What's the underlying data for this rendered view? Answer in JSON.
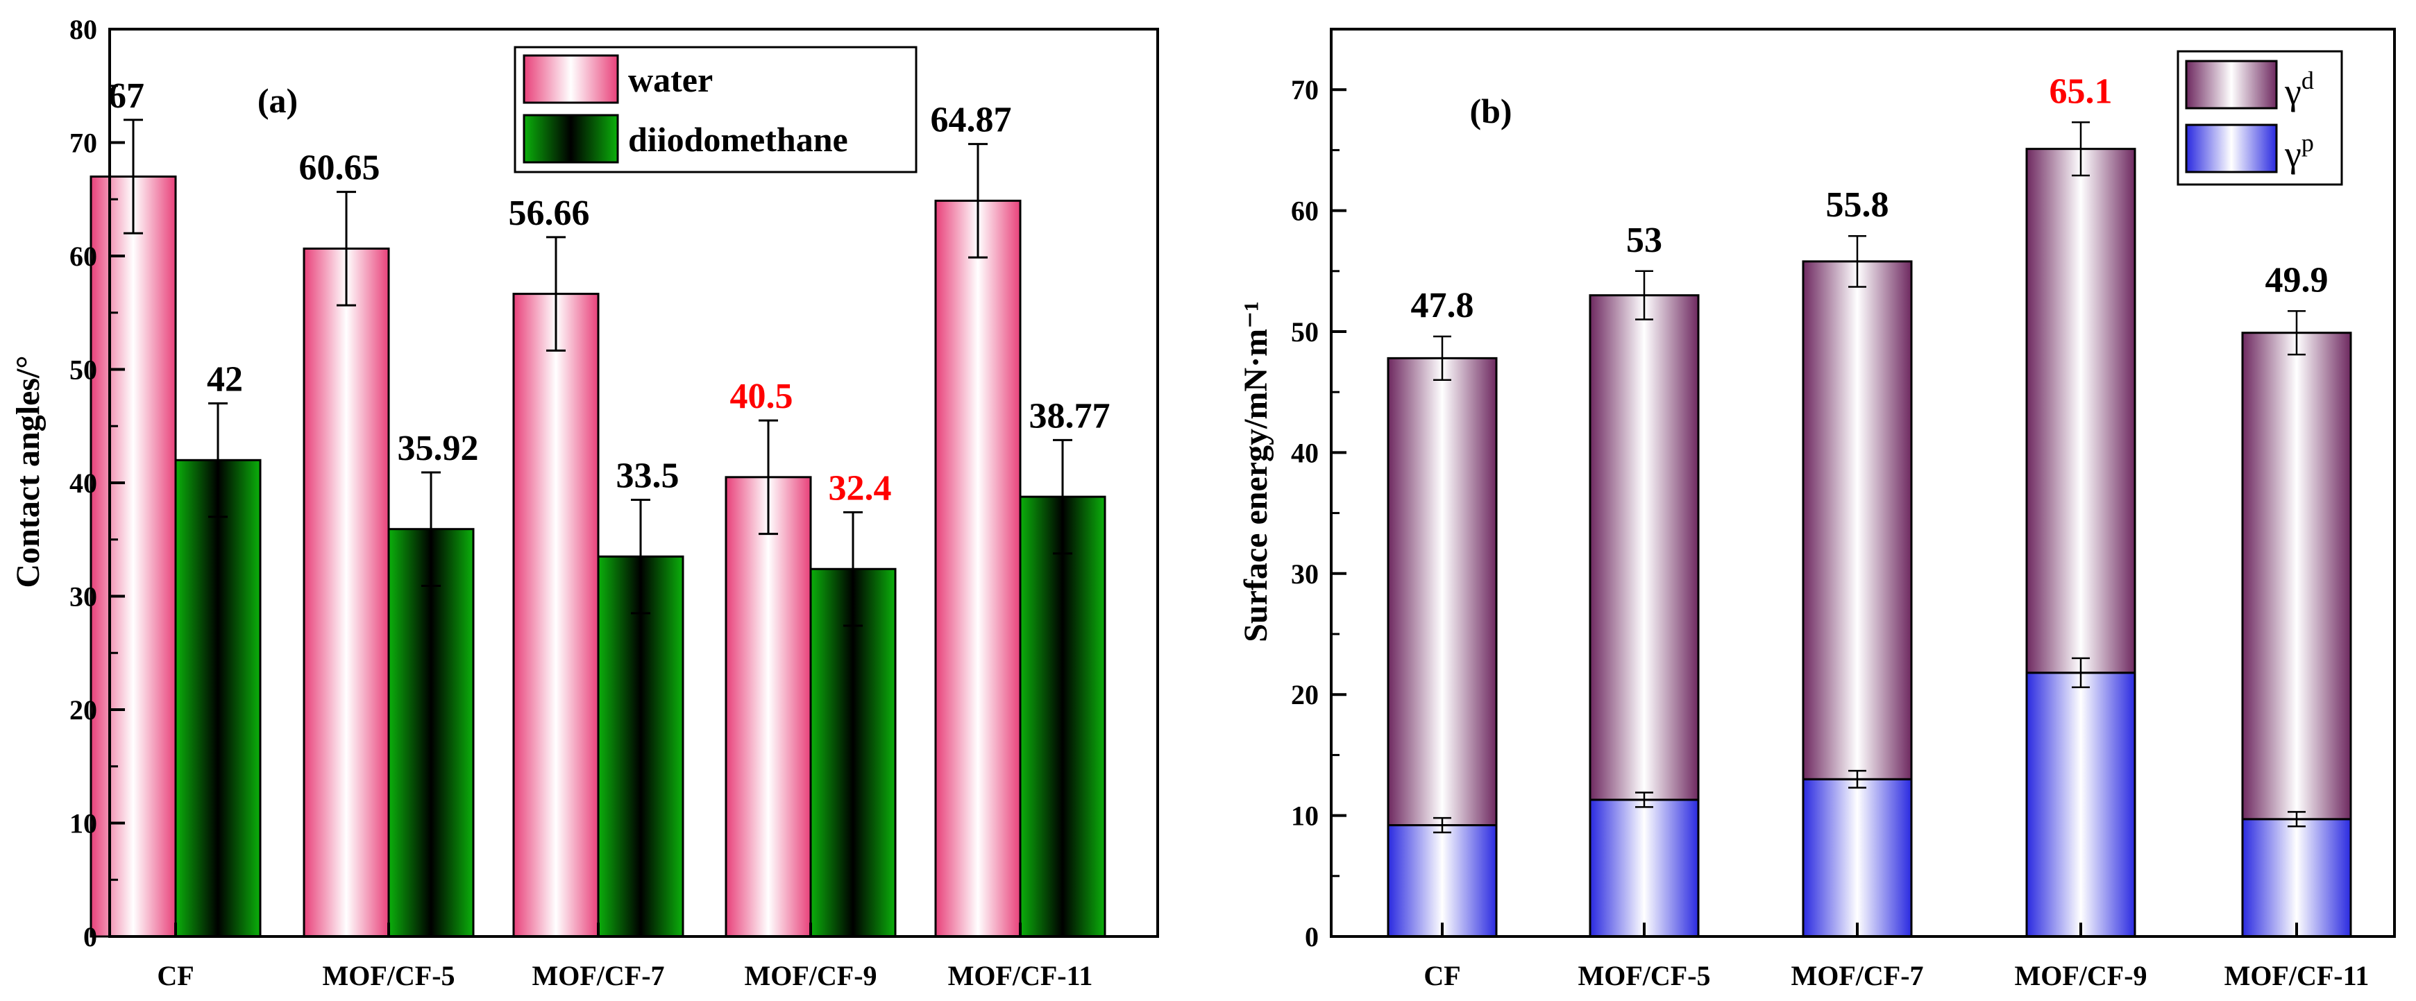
{
  "colors": {
    "water": "#e8417a",
    "diiodomethane": "#0a9a0a",
    "gamma_d": "#6e2960",
    "gamma_p": "#2a2ae0",
    "highlight": "#ff0000",
    "text": "#000000"
  },
  "chart_data": [
    {
      "type": "bar",
      "panel_label": "(a)",
      "categories": [
        "CF",
        "MOF/CF-5",
        "MOF/CF-7",
        "MOF/CF-9",
        "MOF/CF-11"
      ],
      "ylabel": "Contact angles/°",
      "xlabel": "",
      "ylim": [
        0,
        80
      ],
      "yticks": [
        0,
        10,
        20,
        30,
        40,
        50,
        60,
        70,
        80
      ],
      "tick_labels": [
        "0",
        "10",
        "20",
        "30",
        "40",
        "50",
        "60",
        "70",
        "80"
      ],
      "legend_position": "top-right",
      "series": [
        {
          "name": "water",
          "legend_label": "water",
          "values": [
            67,
            60.65,
            56.66,
            40.5,
            64.87
          ],
          "errors": [
            5,
            5,
            5,
            5,
            5
          ],
          "labels": [
            "67",
            "60.65",
            "56.66",
            "40.5",
            "64.87"
          ],
          "highlight": [
            false,
            false,
            false,
            true,
            false
          ]
        },
        {
          "name": "diiodomethane",
          "legend_label": "diiodomethane",
          "values": [
            42,
            35.92,
            33.5,
            32.4,
            38.77
          ],
          "errors": [
            5,
            5,
            5,
            5,
            5
          ],
          "labels": [
            "42",
            "35.92",
            "33.5",
            "32.4",
            "38.77"
          ],
          "highlight": [
            false,
            false,
            false,
            true,
            false
          ]
        }
      ]
    },
    {
      "type": "stacked_bar",
      "panel_label": "(b)",
      "categories": [
        "CF",
        "MOF/CF-5",
        "MOF/CF-7",
        "MOF/CF-9",
        "MOF/CF-11"
      ],
      "ylabel": "Surface energy/mN·m⁻¹",
      "xlabel": "",
      "ylim": [
        0,
        75
      ],
      "yticks": [
        0,
        10,
        20,
        30,
        40,
        50,
        60,
        70
      ],
      "tick_labels": [
        "0",
        "10",
        "20",
        "30",
        "40",
        "50",
        "60",
        "70"
      ],
      "legend_position": "top-right",
      "series": [
        {
          "name": "γp",
          "legend_symbol": "γ",
          "legend_sup": "p",
          "values": [
            9.2,
            11.3,
            13.0,
            21.8,
            9.7
          ],
          "errors": [
            0.6,
            0.6,
            0.7,
            1.2,
            0.6
          ]
        },
        {
          "name": "γd",
          "legend_symbol": "γ",
          "legend_sup": "d",
          "values": [
            38.6,
            41.7,
            42.8,
            43.3,
            40.2
          ],
          "errors": [
            1.8,
            2.0,
            2.1,
            2.2,
            1.8
          ]
        }
      ],
      "totals": [
        47.8,
        53,
        55.8,
        65.1,
        49.9
      ],
      "total_labels": [
        "47.8",
        "53",
        "55.8",
        "65.1",
        "49.9"
      ],
      "highlight": [
        false,
        false,
        false,
        true,
        false
      ]
    }
  ]
}
